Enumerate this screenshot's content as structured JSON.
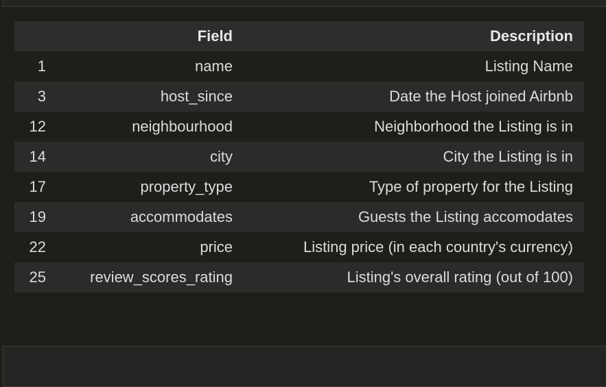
{
  "table": {
    "columns": [
      "",
      "Field",
      "Description"
    ],
    "rows": [
      {
        "index": "1",
        "field": "name",
        "description": "Listing Name"
      },
      {
        "index": "3",
        "field": "host_since",
        "description": "Date the Host joined Airbnb"
      },
      {
        "index": "12",
        "field": "neighbourhood",
        "description": "Neighborhood the Listing is in"
      },
      {
        "index": "14",
        "field": "city",
        "description": "City the Listing is in"
      },
      {
        "index": "17",
        "field": "property_type",
        "description": "Type of property for the Listing"
      },
      {
        "index": "19",
        "field": "accommodates",
        "description": "Guests the Listing accomodates"
      },
      {
        "index": "22",
        "field": "price",
        "description": "Listing price (in each country's currency)"
      },
      {
        "index": "25",
        "field": "review_scores_rating",
        "description": "Listing's overall rating (out of 100)"
      }
    ]
  },
  "colors": {
    "background": "#1e1e1b",
    "header_background": "#2d2d2b",
    "stripe_background": "#2b2b29",
    "text": "#dcdcdc"
  }
}
